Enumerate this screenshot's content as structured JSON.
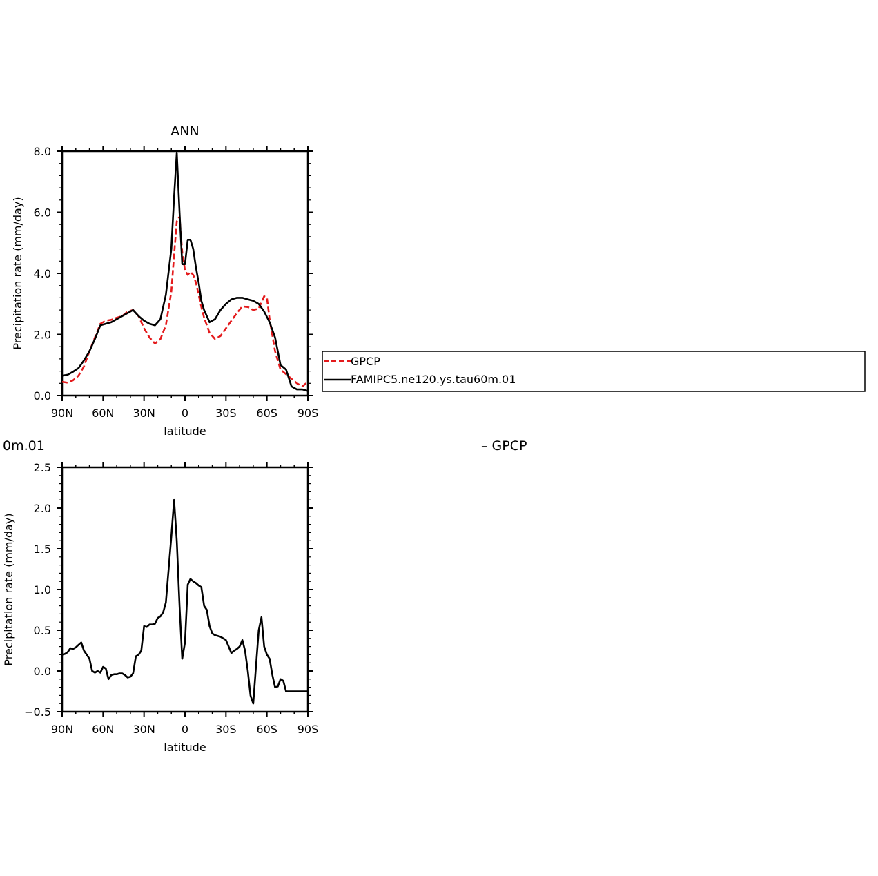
{
  "chart_data": [
    {
      "type": "line",
      "title": "ANN",
      "xlabel": "latitude",
      "ylabel": "Precipitation rate (mm/day)",
      "xlim": [
        90,
        -90
      ],
      "ylim": [
        0,
        8
      ],
      "xticks": [
        {
          "v": 90,
          "label": "90N"
        },
        {
          "v": 60,
          "label": "60N"
        },
        {
          "v": 30,
          "label": "30N"
        },
        {
          "v": 0,
          "label": "0"
        },
        {
          "v": -30,
          "label": "30S"
        },
        {
          "v": -60,
          "label": "60S"
        },
        {
          "v": -90,
          "label": "90S"
        }
      ],
      "yticks": [
        {
          "v": 0,
          "label": "0.0"
        },
        {
          "v": 2,
          "label": "2.0"
        },
        {
          "v": 4,
          "label": "4.0"
        },
        {
          "v": 6,
          "label": "6.0"
        },
        {
          "v": 8,
          "label": "8.0"
        }
      ],
      "legend_position": "right",
      "series": [
        {
          "name": "GPCP",
          "color": "#e41a1c",
          "dash": true,
          "x": [
            90,
            86,
            82,
            78,
            74,
            70,
            66,
            62,
            58,
            54,
            50,
            46,
            42,
            38,
            34,
            30,
            26,
            22,
            18,
            14,
            10,
            8,
            6,
            4,
            2,
            0,
            -2,
            -4,
            -6,
            -8,
            -10,
            -12,
            -14,
            -18,
            -22,
            -26,
            -30,
            -34,
            -38,
            -42,
            -46,
            -50,
            -54,
            -58,
            -60,
            -62,
            -66,
            -70,
            -74,
            -78,
            -82,
            -86,
            -90
          ],
          "y": [
            0.45,
            0.42,
            0.5,
            0.65,
            0.95,
            1.45,
            1.9,
            2.35,
            2.45,
            2.48,
            2.55,
            2.6,
            2.75,
            2.8,
            2.6,
            2.2,
            1.9,
            1.7,
            1.85,
            2.3,
            3.4,
            4.6,
            5.7,
            5.85,
            4.7,
            4.1,
            3.95,
            4.05,
            3.95,
            3.7,
            3.3,
            2.9,
            2.55,
            2.05,
            1.85,
            1.95,
            2.2,
            2.45,
            2.7,
            2.92,
            2.9,
            2.8,
            2.85,
            3.25,
            3.2,
            2.5,
            1.45,
            0.85,
            0.7,
            0.55,
            0.4,
            0.3,
            0.45
          ]
        },
        {
          "name": "FAMIPC5.ne120.ys.tau60m.01",
          "color": "#000000",
          "dash": false,
          "x": [
            90,
            86,
            82,
            78,
            74,
            70,
            66,
            62,
            58,
            54,
            50,
            46,
            42,
            38,
            34,
            30,
            26,
            22,
            18,
            14,
            10,
            8,
            6,
            4,
            2,
            0,
            -2,
            -4,
            -6,
            -8,
            -10,
            -12,
            -14,
            -18,
            -22,
            -26,
            -30,
            -34,
            -38,
            -42,
            -46,
            -50,
            -54,
            -58,
            -62,
            -66,
            -70,
            -74,
            -78,
            -82,
            -86,
            -90
          ],
          "y": [
            0.65,
            0.68,
            0.78,
            0.9,
            1.15,
            1.45,
            1.85,
            2.3,
            2.35,
            2.4,
            2.5,
            2.6,
            2.7,
            2.8,
            2.6,
            2.45,
            2.35,
            2.3,
            2.5,
            3.3,
            4.8,
            6.5,
            7.95,
            6.0,
            4.3,
            4.3,
            5.1,
            5.1,
            4.8,
            4.2,
            3.7,
            3.1,
            2.8,
            2.4,
            2.5,
            2.8,
            3.0,
            3.15,
            3.2,
            3.2,
            3.15,
            3.1,
            3.0,
            2.75,
            2.4,
            1.9,
            1.0,
            0.85,
            0.3,
            0.2,
            0.2,
            0.15
          ]
        }
      ],
      "legend": [
        "GPCP",
        "FAMIPC5.ne120.ys.tau60m.01"
      ]
    },
    {
      "type": "line",
      "title_fragment": "0m.01",
      "right_fragment": "– GPCP",
      "xlabel": "latitude",
      "ylabel": "Precipitation rate (mm/day)",
      "xlim": [
        90,
        -90
      ],
      "ylim": [
        -0.5,
        2.5
      ],
      "xticks": [
        {
          "v": 90,
          "label": "90N"
        },
        {
          "v": 60,
          "label": "60N"
        },
        {
          "v": 30,
          "label": "30N"
        },
        {
          "v": 0,
          "label": "0"
        },
        {
          "v": -30,
          "label": "30S"
        },
        {
          "v": -60,
          "label": "60S"
        },
        {
          "v": -90,
          "label": "90S"
        }
      ],
      "yticks": [
        {
          "v": -0.5,
          "label": "−0.5"
        },
        {
          "v": 0.0,
          "label": "0.0"
        },
        {
          "v": 0.5,
          "label": "0.5"
        },
        {
          "v": 1.0,
          "label": "1.0"
        },
        {
          "v": 1.5,
          "label": "1.5"
        },
        {
          "v": 2.0,
          "label": "2.0"
        },
        {
          "v": 2.5,
          "label": "2.5"
        }
      ],
      "series": [
        {
          "color": "#000000",
          "dash": false,
          "x": [
            90,
            88,
            86,
            84,
            82,
            80,
            78,
            76,
            74,
            72,
            70,
            68,
            66,
            64,
            62,
            60,
            58,
            56,
            54,
            52,
            50,
            48,
            46,
            44,
            42,
            40,
            38,
            36,
            34,
            32,
            30,
            28,
            26,
            24,
            22,
            20,
            18,
            16,
            14,
            12,
            10,
            8,
            6,
            4,
            2,
            0,
            -2,
            -4,
            -6,
            -8,
            -10,
            -12,
            -14,
            -16,
            -18,
            -20,
            -22,
            -24,
            -26,
            -28,
            -30,
            -32,
            -34,
            -36,
            -38,
            -40,
            -42,
            -44,
            -46,
            -48,
            -50,
            -52,
            -54,
            -56,
            -58,
            -60,
            -62,
            -64,
            -66,
            -68,
            -70,
            -72,
            -74,
            -76,
            -78,
            -80,
            -82,
            -84,
            -86,
            -88,
            -90
          ],
          "y": [
            0.2,
            0.21,
            0.23,
            0.28,
            0.27,
            0.29,
            0.32,
            0.35,
            0.25,
            0.2,
            0.15,
            0.0,
            -0.02,
            0.0,
            -0.02,
            0.05,
            0.03,
            -0.1,
            -0.05,
            -0.04,
            -0.04,
            -0.03,
            -0.03,
            -0.05,
            -0.08,
            -0.07,
            -0.03,
            0.18,
            0.2,
            0.25,
            0.55,
            0.54,
            0.57,
            0.57,
            0.58,
            0.65,
            0.67,
            0.72,
            0.84,
            1.25,
            1.65,
            2.1,
            1.6,
            0.8,
            0.15,
            0.35,
            1.06,
            1.13,
            1.1,
            1.08,
            1.05,
            1.03,
            0.8,
            0.75,
            0.55,
            0.46,
            0.44,
            0.43,
            0.42,
            0.4,
            0.38,
            0.3,
            0.22,
            0.25,
            0.27,
            0.3,
            0.38,
            0.25,
            0.0,
            -0.3,
            -0.4,
            0.05,
            0.5,
            0.66,
            0.3,
            0.2,
            0.15,
            -0.05,
            -0.2,
            -0.19,
            -0.1,
            -0.12,
            -0.25,
            -0.25,
            -0.25,
            -0.25,
            -0.25,
            -0.25,
            -0.25,
            -0.25,
            -0.25
          ]
        }
      ]
    }
  ]
}
